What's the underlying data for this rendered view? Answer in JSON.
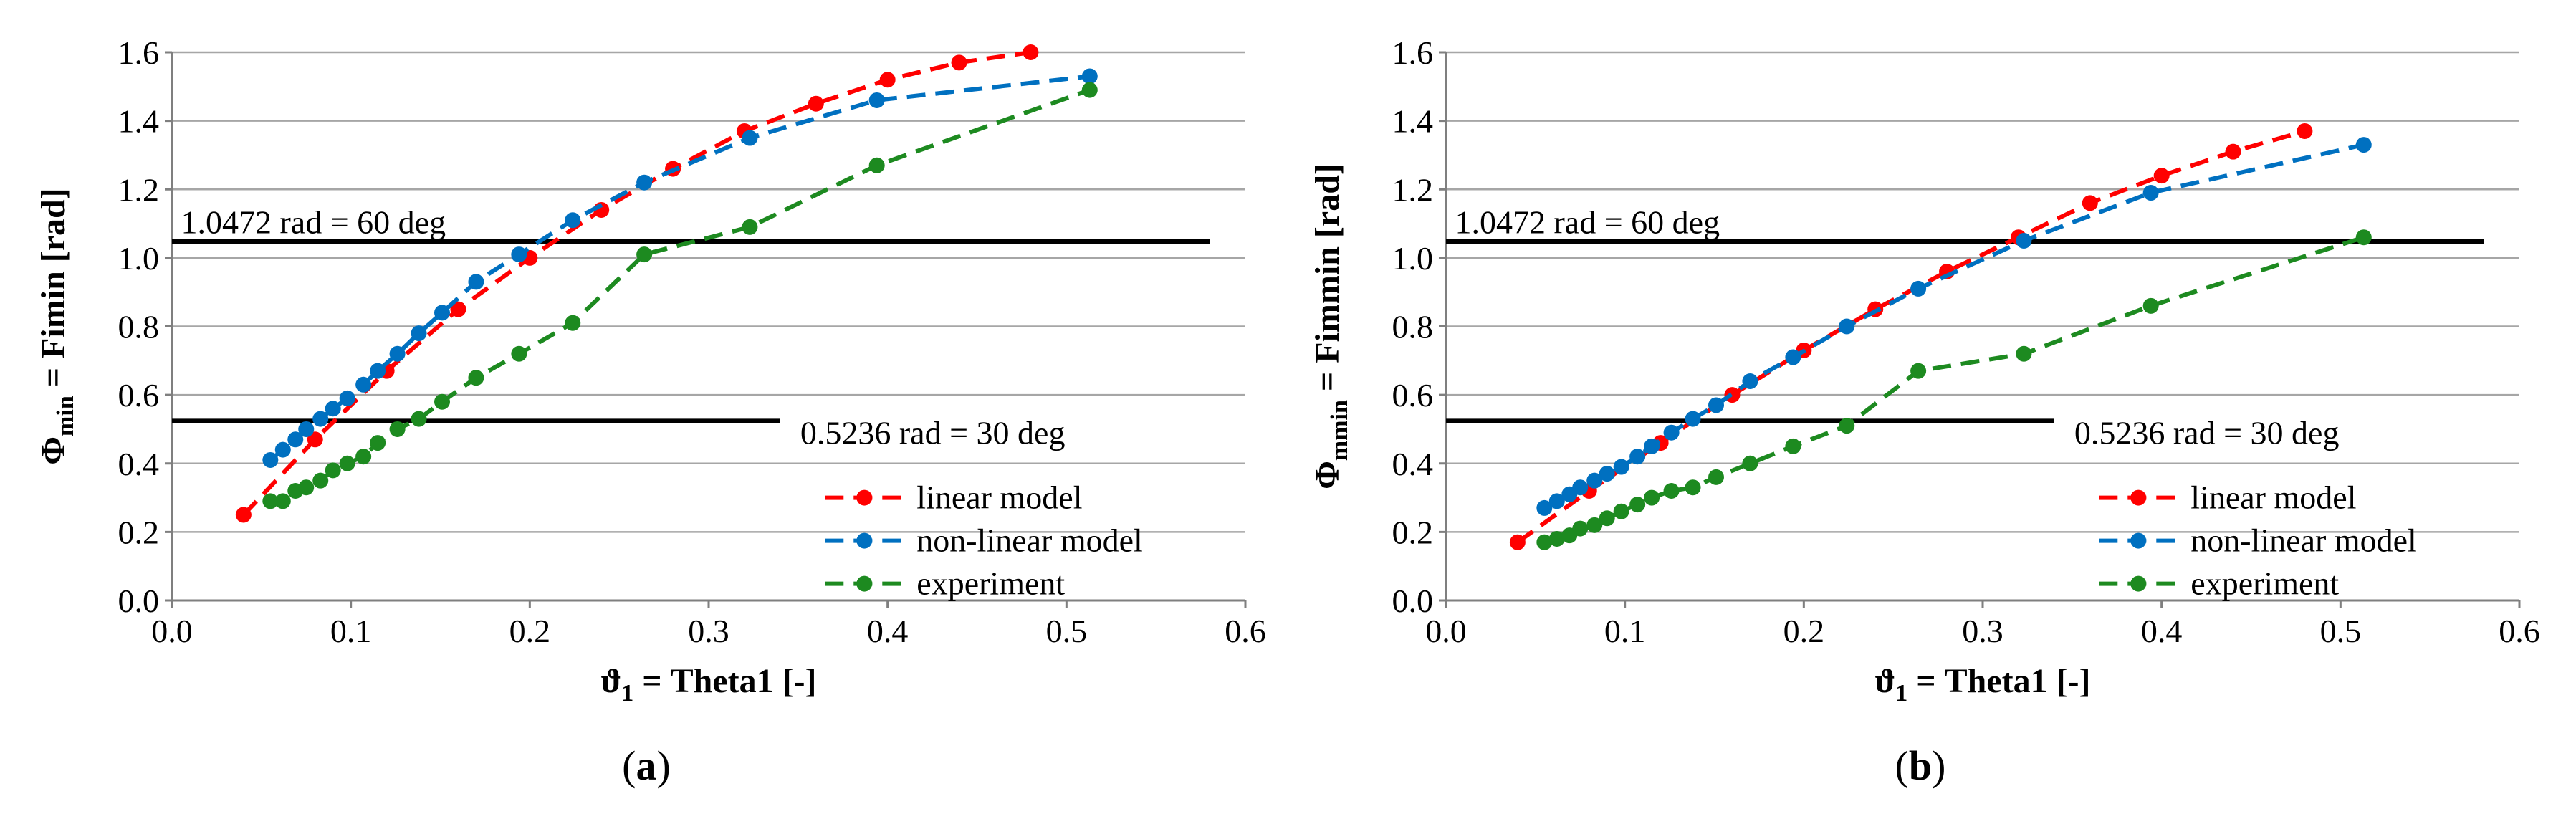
{
  "colors": {
    "linear": "#ff0000",
    "nonlinear": "#0070c0",
    "experiment": "#1d8a20",
    "reference": "#000000",
    "grid": "#a6a6a6"
  },
  "chart_data": [
    {
      "type": "line",
      "panel_label": "a",
      "xlabel": "ϑ1 = Theta1 [-]",
      "xlabel_parts": {
        "symbol": "ϑ",
        "sub": "1",
        "rest": " = Theta1 [-]"
      },
      "ylabel": "Φmin = Fimin [rad]",
      "ylabel_parts": {
        "symbol": "Φ",
        "sub": "min",
        "rest": " = Fimin [rad]"
      },
      "xlim": [
        0,
        0.6
      ],
      "ylim": [
        0,
        1.6
      ],
      "xticks": [
        "0.0",
        "0.1",
        "0.2",
        "0.3",
        "0.4",
        "0.5",
        "0.6"
      ],
      "yticks": [
        "0.0",
        "0.2",
        "0.4",
        "0.6",
        "0.8",
        "1.0",
        "1.2",
        "1.4",
        "1.6"
      ],
      "grid": true,
      "legend_position": "bottom-right",
      "reference_lines": [
        {
          "y": 1.0472,
          "x_range": [
            0,
            0.58
          ],
          "label": "1.0472 rad = 60 deg",
          "label_position": "above-left"
        },
        {
          "y": 0.5236,
          "x_range": [
            0,
            0.34
          ],
          "label": "0.5236 rad = 30 deg",
          "label_position": "right"
        }
      ],
      "series": [
        {
          "name": "linear model",
          "color_key": "linear",
          "points": [
            [
              0.04,
              0.25
            ],
            [
              0.08,
              0.47
            ],
            [
              0.12,
              0.67
            ],
            [
              0.16,
              0.85
            ],
            [
              0.2,
              1.0
            ],
            [
              0.24,
              1.14
            ],
            [
              0.28,
              1.26
            ],
            [
              0.32,
              1.37
            ],
            [
              0.36,
              1.45
            ],
            [
              0.4,
              1.52
            ],
            [
              0.44,
              1.57
            ],
            [
              0.48,
              1.6
            ]
          ]
        },
        {
          "name": "non-linear model",
          "color_key": "nonlinear",
          "points": [
            [
              0.055,
              0.41
            ],
            [
              0.062,
              0.44
            ],
            [
              0.069,
              0.47
            ],
            [
              0.075,
              0.5
            ],
            [
              0.083,
              0.53
            ],
            [
              0.09,
              0.56
            ],
            [
              0.098,
              0.59
            ],
            [
              0.107,
              0.63
            ],
            [
              0.115,
              0.67
            ],
            [
              0.126,
              0.72
            ],
            [
              0.138,
              0.78
            ],
            [
              0.151,
              0.84
            ],
            [
              0.17,
              0.93
            ],
            [
              0.194,
              1.01
            ],
            [
              0.224,
              1.11
            ],
            [
              0.264,
              1.22
            ],
            [
              0.323,
              1.35
            ],
            [
              0.394,
              1.46
            ],
            [
              0.513,
              1.53
            ]
          ]
        },
        {
          "name": "experiment",
          "color_key": "experiment",
          "points": [
            [
              0.055,
              0.29
            ],
            [
              0.062,
              0.29
            ],
            [
              0.069,
              0.32
            ],
            [
              0.075,
              0.33
            ],
            [
              0.083,
              0.35
            ],
            [
              0.09,
              0.38
            ],
            [
              0.098,
              0.4
            ],
            [
              0.107,
              0.42
            ],
            [
              0.115,
              0.46
            ],
            [
              0.126,
              0.5
            ],
            [
              0.138,
              0.53
            ],
            [
              0.151,
              0.58
            ],
            [
              0.17,
              0.65
            ],
            [
              0.194,
              0.72
            ],
            [
              0.224,
              0.81
            ],
            [
              0.264,
              1.01
            ],
            [
              0.323,
              1.09
            ],
            [
              0.394,
              1.27
            ],
            [
              0.513,
              1.49
            ]
          ]
        }
      ]
    },
    {
      "type": "line",
      "panel_label": "b",
      "xlabel": "ϑ1 = Theta1 [-]",
      "xlabel_parts": {
        "symbol": "ϑ",
        "sub": "1",
        "rest": " = Theta1 [-]"
      },
      "ylabel": "Φmmin = Fimmin [rad]",
      "ylabel_parts": {
        "symbol": "Φ",
        "sub": "mmin",
        "rest": " = Fimmin [rad]"
      },
      "xlim": [
        0,
        0.6
      ],
      "ylim": [
        0,
        1.6
      ],
      "xticks": [
        "0.0",
        "0.1",
        "0.2",
        "0.3",
        "0.4",
        "0.5",
        "0.6"
      ],
      "yticks": [
        "0.0",
        "0.2",
        "0.4",
        "0.6",
        "0.8",
        "1.0",
        "1.2",
        "1.4",
        "1.6"
      ],
      "grid": true,
      "legend_position": "bottom-right",
      "reference_lines": [
        {
          "y": 1.0472,
          "x_range": [
            0,
            0.58
          ],
          "label": "1.0472 rad = 60 deg",
          "label_position": "above-left"
        },
        {
          "y": 0.5236,
          "x_range": [
            0,
            0.34
          ],
          "label": "0.5236 rad = 30 deg",
          "label_position": "right"
        }
      ],
      "series": [
        {
          "name": "linear model",
          "color_key": "linear",
          "points": [
            [
              0.04,
              0.17
            ],
            [
              0.08,
              0.32
            ],
            [
              0.12,
              0.46
            ],
            [
              0.16,
              0.6
            ],
            [
              0.2,
              0.73
            ],
            [
              0.24,
              0.85
            ],
            [
              0.28,
              0.96
            ],
            [
              0.32,
              1.06
            ],
            [
              0.36,
              1.16
            ],
            [
              0.4,
              1.24
            ],
            [
              0.44,
              1.31
            ],
            [
              0.48,
              1.37
            ]
          ]
        },
        {
          "name": "non-linear model",
          "color_key": "nonlinear",
          "points": [
            [
              0.055,
              0.27
            ],
            [
              0.062,
              0.29
            ],
            [
              0.069,
              0.31
            ],
            [
              0.075,
              0.33
            ],
            [
              0.083,
              0.35
            ],
            [
              0.09,
              0.37
            ],
            [
              0.098,
              0.39
            ],
            [
              0.107,
              0.42
            ],
            [
              0.115,
              0.45
            ],
            [
              0.126,
              0.49
            ],
            [
              0.138,
              0.53
            ],
            [
              0.151,
              0.57
            ],
            [
              0.17,
              0.64
            ],
            [
              0.194,
              0.71
            ],
            [
              0.224,
              0.8
            ],
            [
              0.264,
              0.91
            ],
            [
              0.323,
              1.05
            ],
            [
              0.394,
              1.19
            ],
            [
              0.513,
              1.33
            ]
          ]
        },
        {
          "name": "experiment",
          "color_key": "experiment",
          "points": [
            [
              0.055,
              0.17
            ],
            [
              0.062,
              0.18
            ],
            [
              0.069,
              0.19
            ],
            [
              0.075,
              0.21
            ],
            [
              0.083,
              0.22
            ],
            [
              0.09,
              0.24
            ],
            [
              0.098,
              0.26
            ],
            [
              0.107,
              0.28
            ],
            [
              0.115,
              0.3
            ],
            [
              0.126,
              0.32
            ],
            [
              0.138,
              0.33
            ],
            [
              0.151,
              0.36
            ],
            [
              0.17,
              0.4
            ],
            [
              0.194,
              0.45
            ],
            [
              0.224,
              0.51
            ],
            [
              0.264,
              0.67
            ],
            [
              0.323,
              0.72
            ],
            [
              0.394,
              0.86
            ],
            [
              0.513,
              1.06
            ]
          ]
        }
      ]
    }
  ]
}
